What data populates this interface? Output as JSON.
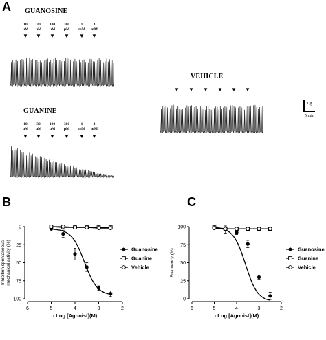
{
  "panel_a": {
    "letter": "A",
    "guanosine": {
      "title": "GUANOSINE",
      "doses": [
        {
          "num": "10",
          "unit": "µM"
        },
        {
          "num": "30",
          "unit": "µM"
        },
        {
          "num": "100",
          "unit": "µM"
        },
        {
          "num": "300",
          "unit": "µM"
        },
        {
          "num": "1",
          "unit": "mM"
        },
        {
          "num": "3",
          "unit": "mM"
        }
      ]
    },
    "guanine": {
      "title": "GUANINE",
      "doses": [
        {
          "num": "10",
          "unit": "µM"
        },
        {
          "num": "30",
          "unit": "µM"
        },
        {
          "num": "100",
          "unit": "µM"
        },
        {
          "num": "300",
          "unit": "µM"
        },
        {
          "num": "1",
          "unit": "mM"
        },
        {
          "num": "3",
          "unit": "mM"
        }
      ]
    },
    "vehicle": {
      "title": "VEHICLE",
      "marker_count": 6
    },
    "scale_bar": {
      "force": "1 g",
      "time": "5 min"
    }
  },
  "chart_data": [
    {
      "type": "scatter",
      "panel": "B",
      "xlabel": "- Log [Agonist](M)",
      "ylabel_lines": [
        "Inhibition spontaneous",
        "mechanical activity (%)"
      ],
      "xlim": [
        6,
        2
      ],
      "ylim": [
        0,
        100
      ],
      "y_inverted": true,
      "xticks": [
        6,
        5,
        4,
        3,
        2
      ],
      "yticks": [
        0,
        25,
        50,
        75,
        100
      ],
      "series": [
        {
          "name": "Guanosine",
          "marker": "filled-circle",
          "fit": "sigmoid",
          "x": [
            5,
            4.5,
            4,
            3.5,
            3,
            2.5
          ],
          "y": [
            3,
            10,
            38,
            56,
            85,
            93
          ],
          "err": [
            3,
            5,
            8,
            6,
            3,
            4
          ]
        },
        {
          "name": "Guanine",
          "marker": "open-square",
          "fit": "flat",
          "x": [
            5,
            4.5,
            4,
            3.5,
            3,
            2.5
          ],
          "y": [
            0,
            1,
            1,
            1,
            1,
            1
          ],
          "err": [
            1,
            1,
            1,
            1,
            1,
            1
          ]
        },
        {
          "name": "Vehicle",
          "marker": "open-circle",
          "fit": "flat",
          "x": [
            5,
            4.5,
            4,
            3.5,
            3,
            2.5
          ],
          "y": [
            0,
            0,
            1,
            1,
            2,
            2
          ],
          "err": [
            1,
            1,
            1,
            1,
            1,
            1
          ]
        }
      ]
    },
    {
      "type": "scatter",
      "panel": "C",
      "xlabel": "- Log [Agonist](M)",
      "ylabel_lines": [
        "Frequency (%)"
      ],
      "xlim": [
        6,
        2
      ],
      "ylim": [
        0,
        100
      ],
      "y_inverted": false,
      "xticks": [
        6,
        5,
        4,
        3,
        2
      ],
      "yticks": [
        0,
        25,
        50,
        75,
        100
      ],
      "series": [
        {
          "name": "Guanosine",
          "marker": "filled-circle",
          "fit": "sigmoid",
          "x": [
            5,
            4.5,
            4,
            3.5,
            3,
            2.5
          ],
          "y": [
            99,
            96,
            92,
            76,
            30,
            4
          ],
          "err": [
            2,
            5,
            3,
            5,
            3,
            5
          ]
        },
        {
          "name": "Guanine",
          "marker": "open-square",
          "fit": "flat",
          "x": [
            5,
            4.5,
            4,
            3.5,
            3,
            2.5
          ],
          "y": [
            99,
            97,
            97,
            97,
            97,
            97
          ],
          "err": [
            1,
            1,
            1,
            1,
            1,
            1
          ]
        },
        {
          "name": "Vehicle",
          "marker": "open-circle",
          "fit": "flat",
          "x": [
            5,
            4.5,
            4,
            3.5,
            3,
            2.5
          ],
          "y": [
            98,
            97,
            97,
            97,
            97,
            97
          ],
          "err": [
            1,
            1,
            1,
            1,
            1,
            1
          ]
        }
      ]
    }
  ]
}
